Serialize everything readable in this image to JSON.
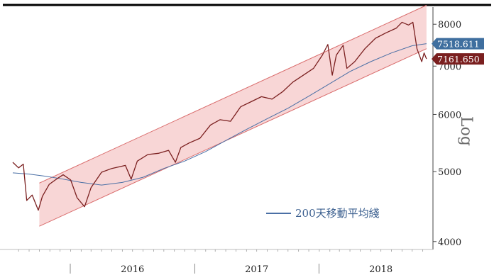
{
  "chart_data": {
    "type": "line",
    "title": "",
    "xlabel": "",
    "ylabel": "Log",
    "yscale": "log",
    "ylim": [
      3900,
      8450
    ],
    "xlim": [
      "2015-07-15",
      "2018-12-01"
    ],
    "grid": false,
    "legend_placement": "bottom-right",
    "y_ticks": [
      "4000",
      "5000",
      "6000",
      "7000",
      "8000"
    ],
    "x_ticks": [
      "2016",
      "2017",
      "2018"
    ],
    "series": [
      {
        "name": "",
        "color": "#7a1f1f",
        "points": [
          [
            "2015-07-15",
            5150
          ],
          [
            "2015-08-01",
            5060
          ],
          [
            "2015-08-15",
            5120
          ],
          [
            "2015-08-25",
            4560
          ],
          [
            "2015-09-10",
            4640
          ],
          [
            "2015-09-28",
            4420
          ],
          [
            "2015-10-10",
            4620
          ],
          [
            "2015-10-30",
            4800
          ],
          [
            "2015-11-20",
            4880
          ],
          [
            "2015-12-10",
            4950
          ],
          [
            "2016-01-01",
            4870
          ],
          [
            "2016-01-20",
            4600
          ],
          [
            "2016-02-11",
            4470
          ],
          [
            "2016-03-01",
            4750
          ],
          [
            "2016-04-01",
            4990
          ],
          [
            "2016-05-01",
            5050
          ],
          [
            "2016-06-10",
            5100
          ],
          [
            "2016-06-27",
            4880
          ],
          [
            "2016-07-15",
            5170
          ],
          [
            "2016-08-15",
            5280
          ],
          [
            "2016-09-15",
            5300
          ],
          [
            "2016-10-15",
            5350
          ],
          [
            "2016-11-04",
            5150
          ],
          [
            "2016-11-20",
            5400
          ],
          [
            "2016-12-15",
            5480
          ],
          [
            "2017-01-15",
            5560
          ],
          [
            "2017-02-15",
            5800
          ],
          [
            "2017-03-15",
            5900
          ],
          [
            "2017-04-15",
            5870
          ],
          [
            "2017-05-15",
            6150
          ],
          [
            "2017-06-15",
            6250
          ],
          [
            "2017-07-15",
            6350
          ],
          [
            "2017-08-15",
            6300
          ],
          [
            "2017-09-15",
            6450
          ],
          [
            "2017-10-15",
            6650
          ],
          [
            "2017-11-15",
            6800
          ],
          [
            "2017-12-15",
            6950
          ],
          [
            "2018-01-10",
            7250
          ],
          [
            "2018-01-26",
            7500
          ],
          [
            "2018-02-08",
            6800
          ],
          [
            "2018-02-20",
            7250
          ],
          [
            "2018-03-12",
            7480
          ],
          [
            "2018-03-23",
            6950
          ],
          [
            "2018-04-15",
            7100
          ],
          [
            "2018-05-15",
            7400
          ],
          [
            "2018-06-15",
            7650
          ],
          [
            "2018-07-15",
            7780
          ],
          [
            "2018-08-15",
            7900
          ],
          [
            "2018-09-01",
            8050
          ],
          [
            "2018-09-20",
            7980
          ],
          [
            "2018-10-03",
            8050
          ],
          [
            "2018-10-15",
            7400
          ],
          [
            "2018-10-29",
            7100
          ],
          [
            "2018-11-05",
            7300
          ],
          [
            "2018-11-12",
            7161.65
          ]
        ]
      },
      {
        "name": "200天移動平均綫",
        "color": "#4a6fa5",
        "points": [
          [
            "2015-07-15",
            4980
          ],
          [
            "2015-09-01",
            4960
          ],
          [
            "2015-10-15",
            4930
          ],
          [
            "2015-12-01",
            4890
          ],
          [
            "2016-02-01",
            4830
          ],
          [
            "2016-04-01",
            4790
          ],
          [
            "2016-06-01",
            4830
          ],
          [
            "2016-08-01",
            4910
          ],
          [
            "2016-10-01",
            5050
          ],
          [
            "2016-12-01",
            5170
          ],
          [
            "2017-02-01",
            5330
          ],
          [
            "2017-04-01",
            5520
          ],
          [
            "2017-06-01",
            5720
          ],
          [
            "2017-08-01",
            5920
          ],
          [
            "2017-10-01",
            6120
          ],
          [
            "2017-12-01",
            6360
          ],
          [
            "2018-02-01",
            6620
          ],
          [
            "2018-04-01",
            6880
          ],
          [
            "2018-06-01",
            7100
          ],
          [
            "2018-08-01",
            7300
          ],
          [
            "2018-10-01",
            7470
          ],
          [
            "2018-11-12",
            7518.611
          ]
        ]
      }
    ],
    "channel": {
      "color": "#f6c8c8",
      "lower": [
        [
          "2015-10-01",
          4200
        ],
        [
          "2018-11-12",
          7400
        ]
      ],
      "upper": [
        [
          "2015-10-01",
          4820
        ],
        [
          "2018-11-12",
          8500
        ]
      ]
    },
    "value_labels": [
      {
        "text": "7518.611",
        "value": 7518.611,
        "color": "#3f6f9f"
      },
      {
        "text": "7161.650",
        "value": 7161.65,
        "color": "#7a1f1f"
      }
    ]
  }
}
